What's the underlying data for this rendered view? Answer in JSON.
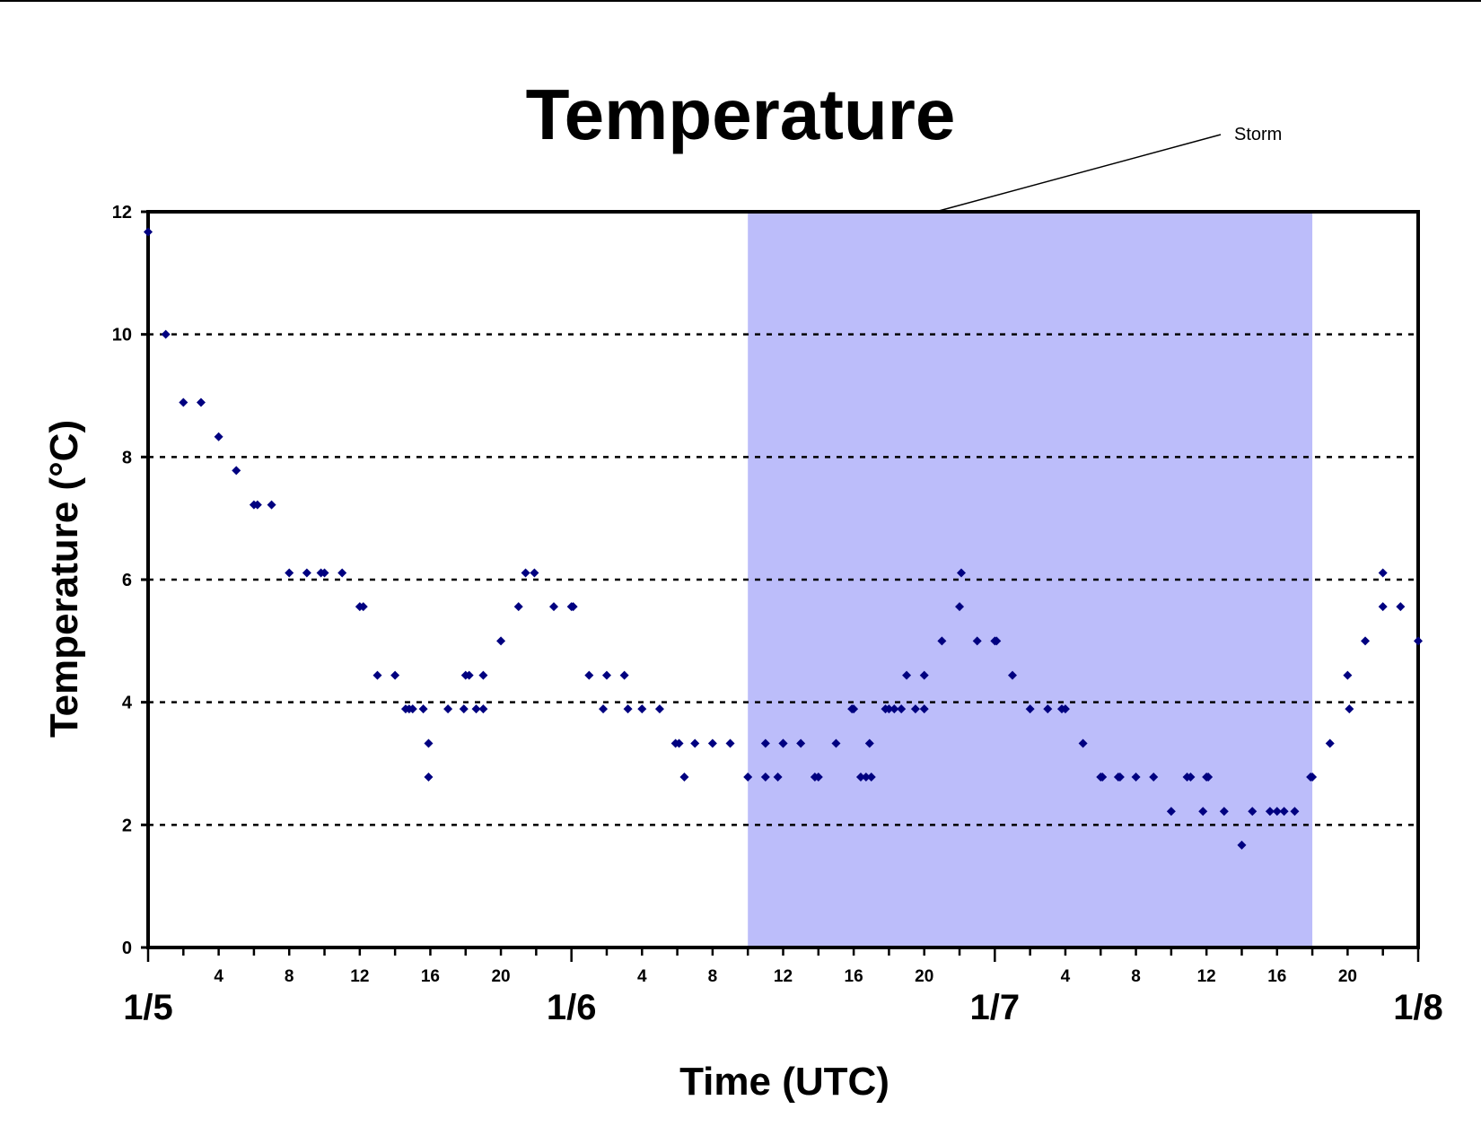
{
  "chart_data": {
    "type": "scatter",
    "title": "Temperature",
    "xlabel": "Time (UTC)",
    "ylabel": "Temperature (°C)",
    "ylim": [
      0,
      12
    ],
    "yticks": [
      0,
      2,
      4,
      6,
      8,
      10,
      12
    ],
    "x_units": "hours since 1/5 00:00 UTC",
    "xlim": [
      0,
      72
    ],
    "day_labels": [
      "1/5",
      "1/6",
      "1/7",
      "1/8"
    ],
    "hour_labels": [
      "4",
      "8",
      "12",
      "16",
      "20"
    ],
    "grid": "horizontal dotted",
    "legend": "none",
    "annotation": {
      "text": "Storm",
      "x_start": 34,
      "x_end": 66
    },
    "colors": {
      "points": "#000080",
      "storm_band": "#bcbdfa",
      "grid": "#000000"
    },
    "series": [
      {
        "points": [
          [
            0,
            11.67
          ],
          [
            1,
            10.0
          ],
          [
            2,
            8.89
          ],
          [
            3,
            8.89
          ],
          [
            4,
            8.33
          ],
          [
            5,
            7.78
          ],
          [
            6,
            7.22
          ],
          [
            6.2,
            7.22
          ],
          [
            7,
            7.22
          ],
          [
            8,
            6.11
          ],
          [
            9,
            6.11
          ],
          [
            9.8,
            6.11
          ],
          [
            10,
            6.11
          ],
          [
            11,
            6.11
          ],
          [
            12,
            5.56
          ],
          [
            12.2,
            5.56
          ],
          [
            13,
            4.44
          ],
          [
            14,
            4.44
          ],
          [
            14.6,
            3.89
          ],
          [
            14.8,
            3.89
          ],
          [
            15,
            3.89
          ],
          [
            15.6,
            3.89
          ],
          [
            15.9,
            3.33
          ],
          [
            15.9,
            2.78
          ],
          [
            17,
            3.89
          ],
          [
            17.9,
            3.89
          ],
          [
            18,
            4.44
          ],
          [
            18.2,
            4.44
          ],
          [
            18.6,
            3.89
          ],
          [
            19,
            4.44
          ],
          [
            19,
            3.89
          ],
          [
            20,
            5.0
          ],
          [
            21,
            5.56
          ],
          [
            21.4,
            6.11
          ],
          [
            21.9,
            6.11
          ],
          [
            23,
            5.56
          ],
          [
            24,
            5.56
          ],
          [
            24.1,
            5.56
          ],
          [
            25,
            4.44
          ],
          [
            25.8,
            3.89
          ],
          [
            26,
            4.44
          ],
          [
            27,
            4.44
          ],
          [
            27.2,
            3.89
          ],
          [
            28,
            3.89
          ],
          [
            29,
            3.89
          ],
          [
            29.9,
            3.33
          ],
          [
            30.1,
            3.33
          ],
          [
            30.4,
            2.78
          ],
          [
            31,
            3.33
          ],
          [
            32,
            3.33
          ],
          [
            33,
            3.33
          ],
          [
            34,
            2.78
          ],
          [
            35,
            3.33
          ],
          [
            35,
            2.78
          ],
          [
            35.7,
            2.78
          ],
          [
            36,
            3.33
          ],
          [
            36,
            3.33
          ],
          [
            37,
            3.33
          ],
          [
            37.8,
            2.78
          ],
          [
            38,
            2.78
          ],
          [
            39,
            3.33
          ],
          [
            39.9,
            3.89
          ],
          [
            40,
            3.89
          ],
          [
            40.4,
            2.78
          ],
          [
            40.7,
            2.78
          ],
          [
            40.9,
            3.33
          ],
          [
            41,
            2.78
          ],
          [
            41.8,
            3.89
          ],
          [
            42,
            3.89
          ],
          [
            42.3,
            3.89
          ],
          [
            42.7,
            3.89
          ],
          [
            43,
            4.44
          ],
          [
            43.5,
            3.89
          ],
          [
            44,
            4.44
          ],
          [
            44,
            3.89
          ],
          [
            45,
            5.0
          ],
          [
            46,
            5.56
          ],
          [
            46.1,
            6.11
          ],
          [
            47,
            5.0
          ],
          [
            48,
            5.0
          ],
          [
            48.1,
            5.0
          ],
          [
            49,
            4.44
          ],
          [
            50,
            3.89
          ],
          [
            51,
            3.89
          ],
          [
            51.8,
            3.89
          ],
          [
            52,
            3.89
          ],
          [
            53,
            3.33
          ],
          [
            54,
            2.78
          ],
          [
            54.1,
            2.78
          ],
          [
            55,
            2.78
          ],
          [
            55.1,
            2.78
          ],
          [
            56,
            2.78
          ],
          [
            57,
            2.78
          ],
          [
            58,
            2.22
          ],
          [
            58.9,
            2.78
          ],
          [
            59.1,
            2.78
          ],
          [
            59.8,
            2.22
          ],
          [
            60,
            2.78
          ],
          [
            60.1,
            2.78
          ],
          [
            61,
            2.22
          ],
          [
            62,
            1.67
          ],
          [
            62.6,
            2.22
          ],
          [
            63.6,
            2.22
          ],
          [
            64,
            2.22
          ],
          [
            64.4,
            2.22
          ],
          [
            65,
            2.22
          ],
          [
            65.9,
            2.78
          ],
          [
            66,
            2.78
          ],
          [
            67,
            3.33
          ],
          [
            68,
            4.44
          ],
          [
            68.1,
            3.89
          ],
          [
            69,
            5.0
          ],
          [
            70,
            6.11
          ],
          [
            70,
            5.56
          ],
          [
            71,
            5.56
          ],
          [
            72,
            5.0
          ]
        ]
      }
    ]
  }
}
